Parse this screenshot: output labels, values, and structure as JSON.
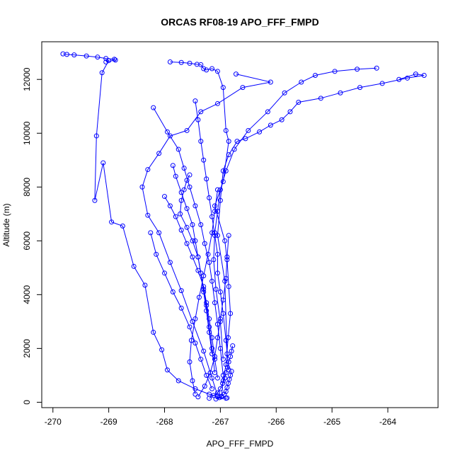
{
  "chart_data": {
    "type": "scatter",
    "title": "ORCAS RF08-19 APO_FFF_FMPD",
    "xlabel": "APO_FFF_FMPD",
    "ylabel": "Altitude (m)",
    "xlim": [
      -270.2,
      -263.1
    ],
    "ylim": [
      -200,
      13400
    ],
    "x_ticks": [
      "-270",
      "-269",
      "-268",
      "-267",
      "-266",
      "-265",
      "-264"
    ],
    "y_ticks": [
      "0",
      "2000",
      "4000",
      "6000",
      "8000",
      "10000",
      "12000"
    ],
    "grid": false,
    "color": "#0000ff",
    "series": [
      {
        "x": [
          -269.82,
          -269.75,
          -269.62,
          -269.4,
          -269.2,
          -269.05,
          -268.9,
          -268.88,
          -269.05,
          -269.0,
          -269.12,
          -269.22,
          -269.25,
          -269.1,
          -268.95,
          -268.75,
          -268.55,
          -268.35,
          -268.2,
          -268.05,
          -267.95,
          -267.75,
          -267.45,
          -267.2,
          -267.05,
          -266.9,
          -266.88
        ],
        "y": [
          12950,
          12930,
          12910,
          12870,
          12830,
          12780,
          12750,
          12720,
          12650,
          12700,
          12250,
          9900,
          7500,
          8900,
          6700,
          6550,
          5050,
          4350,
          2600,
          1950,
          1200,
          800,
          500,
          300,
          200,
          150,
          160
        ]
      },
      {
        "x": [
          -267.9,
          -267.7,
          -267.55,
          -267.42,
          -267.35,
          -267.3,
          -267.25,
          -267.15,
          -267.05,
          -266.95,
          -266.9,
          -266.85,
          -266.95,
          -267.1,
          -266.92,
          -266.88,
          -266.85,
          -266.82,
          -266.86,
          -266.9,
          -266.95,
          -266.98
        ],
        "y": [
          12650,
          12630,
          12600,
          12560,
          12550,
          12400,
          12350,
          12400,
          12300,
          11700,
          10100,
          9700,
          8200,
          7300,
          6000,
          5300,
          4300,
          3300,
          2400,
          1400,
          800,
          200
        ]
      },
      {
        "x": [
          -263.8,
          -263.5,
          -263.35,
          -263.65,
          -264.1,
          -264.5,
          -264.85,
          -265.2,
          -265.6,
          -265.75,
          -265.9,
          -266.1,
          -266.3,
          -266.55,
          -266.7,
          -266.85,
          -266.95,
          -267.0,
          -267.05,
          -266.92,
          -266.88
        ],
        "y": [
          12000,
          12200,
          12150,
          12050,
          11850,
          11700,
          11500,
          11300,
          11150,
          10800,
          10500,
          10300,
          10050,
          9800,
          9700,
          9200,
          8600,
          7500,
          6200,
          4500,
          1800
        ]
      },
      {
        "x": [
          -266.72,
          -266.1,
          -266.6,
          -267.05,
          -267.35,
          -267.6,
          -267.9,
          -268.1,
          -268.3,
          -268.4,
          -268.3,
          -268.1,
          -267.9,
          -267.7,
          -267.5,
          -267.3,
          -267.15,
          -267.05
        ],
        "y": [
          12200,
          11900,
          11700,
          11100,
          10800,
          10100,
          9900,
          9250,
          8650,
          8000,
          6950,
          6300,
          5200,
          4150,
          3000,
          1900,
          900,
          250
        ]
      },
      {
        "x": [
          -268.2,
          -267.95,
          -267.75,
          -267.65,
          -267.55,
          -267.45,
          -267.35,
          -267.28,
          -267.2,
          -267.15,
          -267.1,
          -267.05,
          -267.0,
          -266.95
        ],
        "y": [
          10950,
          10050,
          9400,
          8700,
          8000,
          7300,
          6600,
          5900,
          5200,
          4500,
          3700,
          2900,
          2000,
          1000
        ]
      },
      {
        "x": [
          -264.2,
          -264.55,
          -264.95,
          -265.3,
          -265.55,
          -265.85,
          -266.15,
          -266.5,
          -266.75,
          -266.9,
          -267.0,
          -267.05,
          -267.1,
          -267.12,
          -267.08,
          -267.0,
          -266.95
        ],
        "y": [
          12420,
          12380,
          12300,
          12150,
          11900,
          11500,
          10800,
          10100,
          9400,
          8600,
          7900,
          7100,
          6300,
          5300,
          4200,
          3000,
          1600
        ]
      },
      {
        "x": [
          -267.45,
          -267.4,
          -267.35,
          -267.3,
          -267.25,
          -267.2,
          -267.15,
          -267.1,
          -267.05,
          -267.05,
          -267.0,
          -266.95,
          -266.9,
          -266.85
        ],
        "y": [
          11200,
          10500,
          9700,
          9000,
          8300,
          7600,
          6900,
          6200,
          5500,
          4800,
          4100,
          3300,
          2300,
          1200
        ]
      },
      {
        "x": [
          -267.55,
          -267.6,
          -267.65,
          -267.7,
          -267.72,
          -267.6,
          -267.5,
          -267.4,
          -267.35,
          -267.3,
          -267.25,
          -267.2,
          -267.15,
          -267.1
        ],
        "y": [
          8450,
          8250,
          7900,
          7500,
          7000,
          6500,
          6000,
          5400,
          4800,
          4200,
          3600,
          2800,
          2000,
          1100
        ]
      },
      {
        "x": [
          -268.0,
          -267.9,
          -267.8,
          -267.7,
          -267.6,
          -267.5,
          -267.4,
          -267.3,
          -267.25,
          -267.2,
          -267.15,
          -267.1,
          -267.05
        ],
        "y": [
          7650,
          7300,
          6900,
          6400,
          5900,
          5400,
          4900,
          4300,
          3700,
          3100,
          2400,
          1600,
          900
        ]
      },
      {
        "x": [
          -267.85,
          -267.8,
          -267.7,
          -267.6,
          -267.5,
          -267.45,
          -267.4,
          -267.35,
          -267.3,
          -267.25,
          -267.2,
          -267.15
        ],
        "y": [
          8800,
          8400,
          7800,
          7200,
          6600,
          6000,
          5400,
          4800,
          4100,
          3400,
          2600,
          1800
        ]
      },
      {
        "x": [
          -268.25,
          -268.15,
          -268.0,
          -267.85,
          -267.7,
          -267.55,
          -267.45,
          -267.35,
          -267.25,
          -267.15
        ],
        "y": [
          6300,
          5500,
          4800,
          4100,
          3500,
          2800,
          2200,
          1600,
          1000,
          500
        ]
      },
      {
        "x": [
          -267.45,
          -267.5,
          -267.55,
          -267.52,
          -267.45,
          -267.38,
          -267.3,
          -267.22,
          -267.15,
          -267.1,
          -267.05
        ],
        "y": [
          300,
          800,
          1500,
          2300,
          3100,
          3900,
          4700,
          5500,
          6300,
          7100,
          7900
        ]
      },
      {
        "x": [
          -267.4,
          -267.28,
          -267.18,
          -267.1,
          -267.05,
          -267.0,
          -266.95,
          -266.9,
          -266.88,
          -266.85
        ],
        "y": [
          200,
          600,
          1100,
          1700,
          2400,
          3100,
          3800,
          4600,
          5400,
          6200
        ]
      },
      {
        "x": [
          -267.2,
          -267.12,
          -267.05,
          -267.0,
          -266.96,
          -266.92,
          -266.9,
          -266.87,
          -266.85,
          -266.82,
          -266.8,
          -266.78
        ],
        "y": [
          150,
          250,
          350,
          500,
          700,
          900,
          1100,
          1300,
          1500,
          1700,
          1900,
          2100
        ]
      },
      {
        "x": [
          -267.08,
          -267.02,
          -266.98,
          -266.93,
          -266.9,
          -266.88,
          -266.86,
          -266.84,
          -266.82,
          -266.8
        ],
        "y": [
          120,
          170,
          220,
          300,
          400,
          550,
          700,
          850,
          1000,
          1150
        ]
      }
    ]
  }
}
